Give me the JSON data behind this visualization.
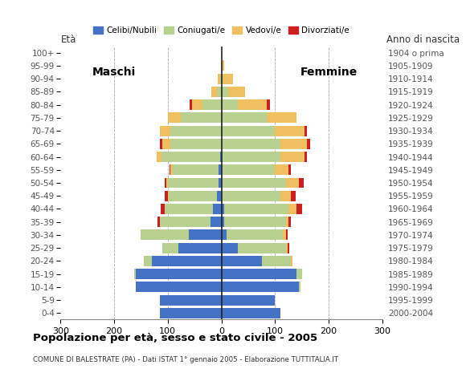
{
  "age_groups": [
    "0-4",
    "5-9",
    "10-14",
    "15-19",
    "20-24",
    "25-29",
    "30-34",
    "35-39",
    "40-44",
    "45-49",
    "50-54",
    "55-59",
    "60-64",
    "65-69",
    "70-74",
    "75-79",
    "80-84",
    "85-89",
    "90-94",
    "95-99",
    "100+"
  ],
  "birth_years": [
    "2000-2004",
    "1995-1999",
    "1990-1994",
    "1985-1989",
    "1980-1984",
    "1975-1979",
    "1970-1974",
    "1965-1969",
    "1960-1964",
    "1955-1959",
    "1950-1954",
    "1945-1949",
    "1940-1944",
    "1935-1939",
    "1930-1934",
    "1925-1929",
    "1920-1924",
    "1915-1919",
    "1910-1914",
    "1905-1909",
    "1904 o prima"
  ],
  "colors": {
    "celibi": "#4472c4",
    "coniugati": "#b8d090",
    "vedovi": "#f0c060",
    "divorziati": "#cc2020"
  },
  "males": {
    "celibi": [
      115,
      115,
      160,
      160,
      130,
      80,
      60,
      20,
      15,
      8,
      5,
      5,
      2,
      0,
      0,
      0,
      0,
      0,
      0,
      0,
      0
    ],
    "coniugati": [
      0,
      0,
      0,
      2,
      15,
      30,
      90,
      95,
      90,
      90,
      95,
      85,
      110,
      95,
      95,
      75,
      35,
      8,
      2,
      0,
      0
    ],
    "vedovi": [
      0,
      0,
      0,
      0,
      0,
      0,
      0,
      0,
      0,
      2,
      2,
      5,
      8,
      15,
      20,
      25,
      20,
      10,
      4,
      0,
      0
    ],
    "divorziati": [
      0,
      0,
      0,
      0,
      0,
      0,
      0,
      4,
      8,
      5,
      3,
      2,
      0,
      4,
      0,
      0,
      4,
      0,
      0,
      0,
      0
    ]
  },
  "females": {
    "celibi": [
      110,
      100,
      145,
      140,
      75,
      30,
      10,
      5,
      5,
      0,
      0,
      0,
      0,
      0,
      0,
      0,
      0,
      0,
      0,
      0,
      0
    ],
    "coniugati": [
      0,
      0,
      2,
      10,
      55,
      90,
      105,
      115,
      120,
      110,
      120,
      100,
      110,
      110,
      100,
      85,
      30,
      12,
      2,
      0,
      0
    ],
    "vedovi": [
      0,
      0,
      0,
      0,
      3,
      4,
      5,
      5,
      15,
      20,
      25,
      25,
      45,
      50,
      55,
      55,
      55,
      32,
      20,
      5,
      0
    ],
    "divorziati": [
      0,
      0,
      0,
      0,
      0,
      3,
      4,
      5,
      10,
      9,
      9,
      4,
      5,
      5,
      5,
      0,
      5,
      0,
      0,
      0,
      0
    ]
  },
  "title": "Popolazione per età, sesso e stato civile - 2005",
  "subtitle": "COMUNE DI BALESTRATE (PA) - Dati ISTAT 1° gennaio 2005 - Elaborazione TUTTITALIA.IT",
  "label_maschi": "Maschi",
  "label_femmine": "Femmine",
  "label_eta": "Età",
  "label_anno": "Anno di nascita",
  "xlim": 300
}
